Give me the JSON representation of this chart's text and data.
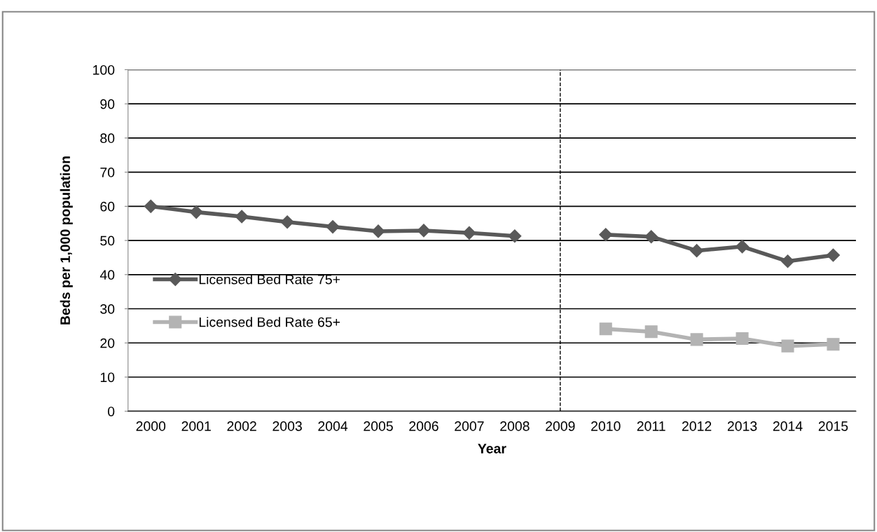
{
  "chart_data": {
    "type": "line",
    "xlabel": "Year",
    "ylabel": "Beds per 1,000 population",
    "categories": [
      "2000",
      "2001",
      "2002",
      "2003",
      "2004",
      "2005",
      "2006",
      "2007",
      "2008",
      "2009",
      "2010",
      "2011",
      "2012",
      "2013",
      "2014",
      "2015"
    ],
    "series": [
      {
        "name": "Licensed Bed Rate 75+",
        "color": "#595959",
        "marker": "diamond",
        "values": [
          60,
          58.3,
          57,
          55.4,
          54,
          52.7,
          52.9,
          52.2,
          51.3,
          null,
          51.7,
          51.1,
          47.0,
          48.2,
          43.9,
          45.7
        ]
      },
      {
        "name": "Licensed Bed Rate 65+",
        "color": "#b3b3b3",
        "marker": "square",
        "values": [
          null,
          null,
          null,
          null,
          null,
          null,
          null,
          null,
          null,
          null,
          24.1,
          23.3,
          21.0,
          21.3,
          19.1,
          19.6
        ]
      }
    ],
    "ylim": [
      0,
      100
    ],
    "yticks": [
      0,
      10,
      20,
      30,
      40,
      50,
      60,
      70,
      80,
      90,
      100
    ],
    "grid": "y",
    "legend": "left",
    "ref_lines": [
      {
        "axis": "x",
        "value": "2009",
        "color": "#000000",
        "line_style": "dashed"
      }
    ]
  }
}
